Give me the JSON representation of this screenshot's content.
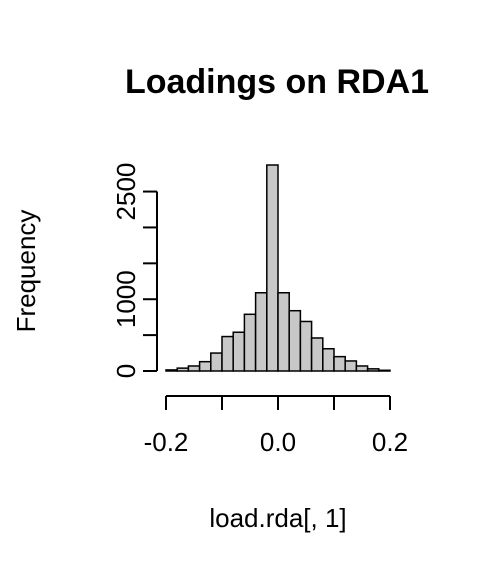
{
  "chart_data": {
    "type": "bar",
    "title": "Loadings on RDA1",
    "xlabel": "load.rda[, 1]",
    "ylabel": "Frequency",
    "bin_width": 0.02,
    "bins": [
      {
        "x0": -0.2,
        "x1": -0.18,
        "count": 15
      },
      {
        "x0": -0.18,
        "x1": -0.16,
        "count": 40
      },
      {
        "x0": -0.16,
        "x1": -0.14,
        "count": 70
      },
      {
        "x0": -0.14,
        "x1": -0.12,
        "count": 130
      },
      {
        "x0": -0.12,
        "x1": -0.1,
        "count": 250
      },
      {
        "x0": -0.1,
        "x1": -0.08,
        "count": 480
      },
      {
        "x0": -0.08,
        "x1": -0.06,
        "count": 540
      },
      {
        "x0": -0.06,
        "x1": -0.04,
        "count": 790
      },
      {
        "x0": -0.04,
        "x1": -0.02,
        "count": 1090
      },
      {
        "x0": -0.02,
        "x1": 0.0,
        "count": 2870
      },
      {
        "x0": 0.0,
        "x1": 0.02,
        "count": 1090
      },
      {
        "x0": 0.02,
        "x1": 0.04,
        "count": 840
      },
      {
        "x0": 0.04,
        "x1": 0.06,
        "count": 690
      },
      {
        "x0": 0.06,
        "x1": 0.08,
        "count": 460
      },
      {
        "x0": 0.08,
        "x1": 0.1,
        "count": 310
      },
      {
        "x0": 0.1,
        "x1": 0.12,
        "count": 200
      },
      {
        "x0": 0.12,
        "x1": 0.14,
        "count": 140
      },
      {
        "x0": 0.14,
        "x1": 0.16,
        "count": 70
      },
      {
        "x0": 0.16,
        "x1": 0.18,
        "count": 30
      },
      {
        "x0": 0.18,
        "x1": 0.2,
        "count": 10
      }
    ],
    "xlim": [
      -0.2,
      0.2
    ],
    "ylim": [
      0,
      2870
    ],
    "x_ticks": [
      -0.2,
      -0.1,
      0.0,
      0.1,
      0.2
    ],
    "x_tick_labels": [
      "-0.2",
      "",
      "0.0",
      "",
      "0.2"
    ],
    "y_ticks": [
      0,
      500,
      1000,
      1500,
      2000,
      2500
    ],
    "y_tick_labels": [
      "0",
      "",
      "1000",
      "",
      "",
      "2500"
    ],
    "grid": false,
    "legend": "none",
    "bar_color": "#c8c8c8"
  }
}
